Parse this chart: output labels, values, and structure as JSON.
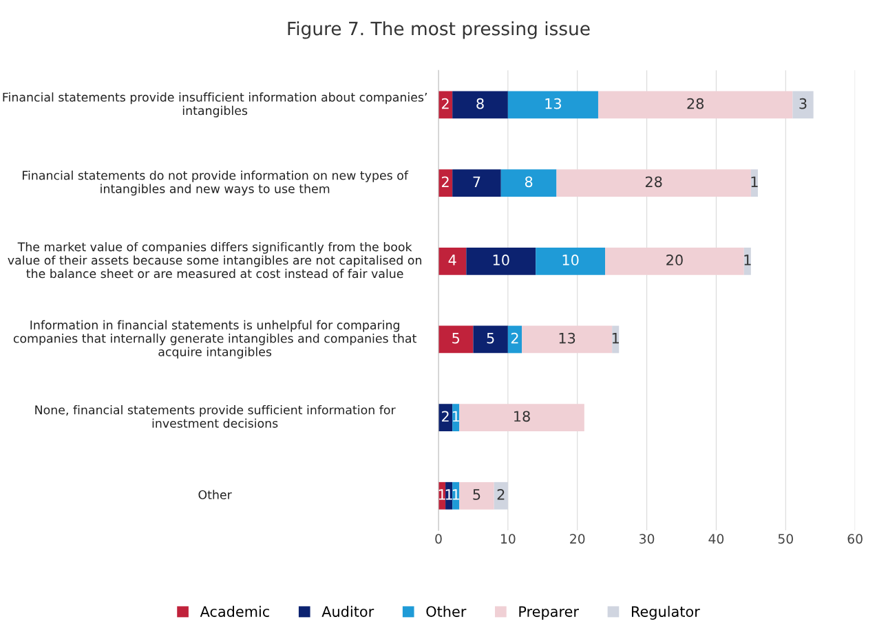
{
  "chart_data": {
    "type": "bar",
    "orientation": "horizontal",
    "stacked": true,
    "title": "Figure 7. The most pressing issue",
    "categories": [
      "Financial statements provide insufficient information about companies’ intangibles",
      "Financial statements do not provide information on new types of intangibles and new ways to use them",
      "The market value of companies differs significantly from the book value of their assets because some intangibles are not capitalised on the balance sheet or are measured at cost instead of fair value",
      "Information in financial statements is unhelpful for comparing companies that internally generate intangibles and companies that acquire intangibles",
      "None, financial statements provide sufficient information for investment decisions",
      "Other"
    ],
    "series": [
      {
        "name": "Academic",
        "color": "#c0223b",
        "values": [
          2,
          2,
          4,
          5,
          null,
          1
        ]
      },
      {
        "name": "Auditor",
        "color": "#0c2270",
        "values": [
          8,
          7,
          10,
          5,
          2,
          1
        ]
      },
      {
        "name": "Other",
        "color": "#1f9bd7",
        "values": [
          13,
          8,
          10,
          2,
          1,
          1
        ]
      },
      {
        "name": "Preparer",
        "color": "#f0d0d5",
        "values": [
          28,
          28,
          20,
          13,
          18,
          5
        ]
      },
      {
        "name": "Regulator",
        "color": "#d0d5e0",
        "values": [
          3,
          1,
          1,
          1,
          null,
          2
        ]
      }
    ],
    "xlim": [
      0,
      60
    ],
    "xticks": [
      0,
      10,
      20,
      30,
      40,
      50,
      60
    ],
    "grid": "x",
    "legend": "bottom",
    "data_labels": true
  }
}
